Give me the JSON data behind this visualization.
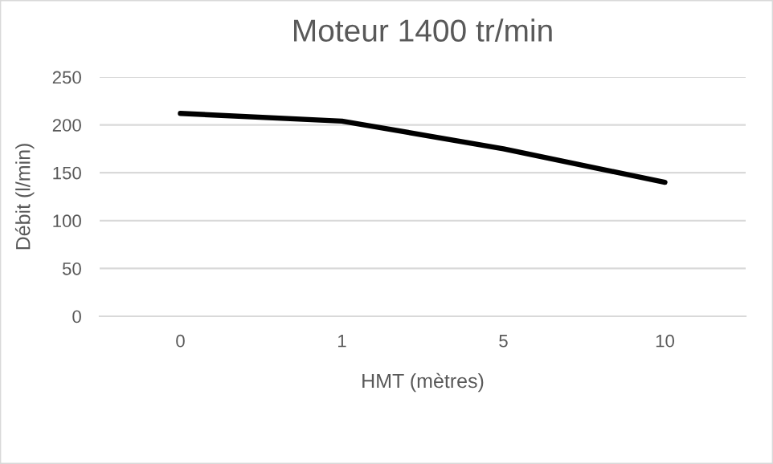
{
  "chart_data": {
    "type": "line",
    "title": "Moteur 1400 tr/min",
    "xlabel": "HMT (mètres)",
    "ylabel": "Débit (l/min)",
    "categories": [
      "0",
      "1",
      "5",
      "10"
    ],
    "series": [
      {
        "color": "#000000",
        "values": [
          212,
          204,
          175,
          140
        ]
      }
    ],
    "ylim": [
      0,
      250
    ],
    "yticks": [
      0,
      50,
      100,
      150,
      200,
      250
    ],
    "grid": "y",
    "marker": "none",
    "line_style": "solid"
  }
}
